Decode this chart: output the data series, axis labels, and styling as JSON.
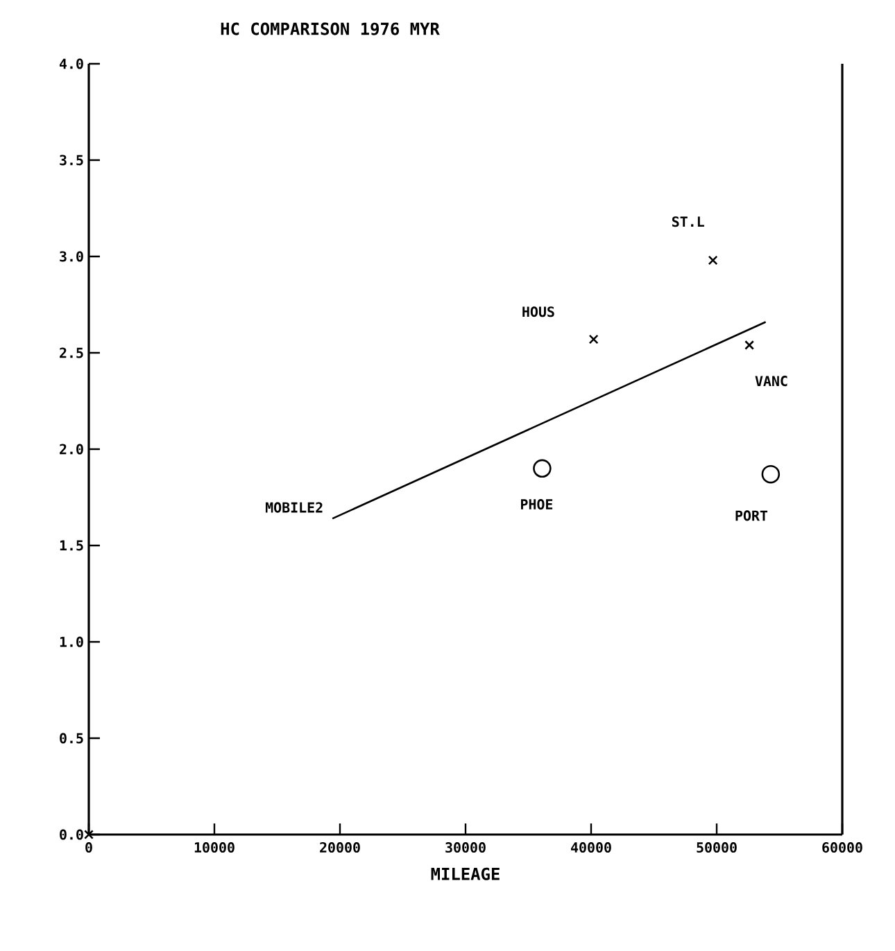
{
  "chart_data": {
    "type": "scatter",
    "title": "HC COMPARISON    1976 MYR",
    "xlabel": "MILEAGE",
    "xlim": [
      0,
      60000
    ],
    "ylim": [
      0,
      4
    ],
    "xticks": [
      0,
      10000,
      20000,
      30000,
      40000,
      50000,
      60000
    ],
    "yticks": [
      {
        "value": 0,
        "label": "0.0"
      },
      {
        "value": 0.5,
        "label": "0.5"
      },
      {
        "value": 1,
        "label": "1.0"
      },
      {
        "value": 1.5,
        "label": "1.5"
      },
      {
        "value": 2,
        "label": "2.0"
      },
      {
        "value": 2.5,
        "label": "2.5"
      },
      {
        "value": 3,
        "label": "3.0"
      },
      {
        "value": 3.5,
        "label": "3.5"
      },
      {
        "value": 4,
        "label": "4.0"
      }
    ],
    "grid": false,
    "series": [
      {
        "marker": "cross",
        "color": "#000000",
        "x": [
          0
        ],
        "values": [
          0
        ]
      },
      {
        "name": "HOUS",
        "marker": "cross",
        "color": "#000000",
        "x": [
          40200
        ],
        "values": [
          2.57
        ]
      },
      {
        "name": "ST.L",
        "marker": "cross",
        "color": "#000000",
        "x": [
          49700
        ],
        "values": [
          2.98
        ]
      },
      {
        "name": "VANC",
        "marker": "cross",
        "color": "#000000",
        "x": [
          52600
        ],
        "values": [
          2.54
        ]
      },
      {
        "name": "PHOE",
        "marker": "circle",
        "color": "#000000",
        "x": [
          36100
        ],
        "values": [
          1.9
        ]
      },
      {
        "name": "PORT",
        "marker": "circle",
        "color": "#000000",
        "x": [
          54300
        ],
        "values": [
          1.87
        ]
      },
      {
        "name": "MOBILE2",
        "type": "line",
        "marker": "none",
        "color": "#000000",
        "x": [
          19400,
          53900
        ],
        "values": [
          1.64,
          2.66
        ]
      }
    ]
  }
}
